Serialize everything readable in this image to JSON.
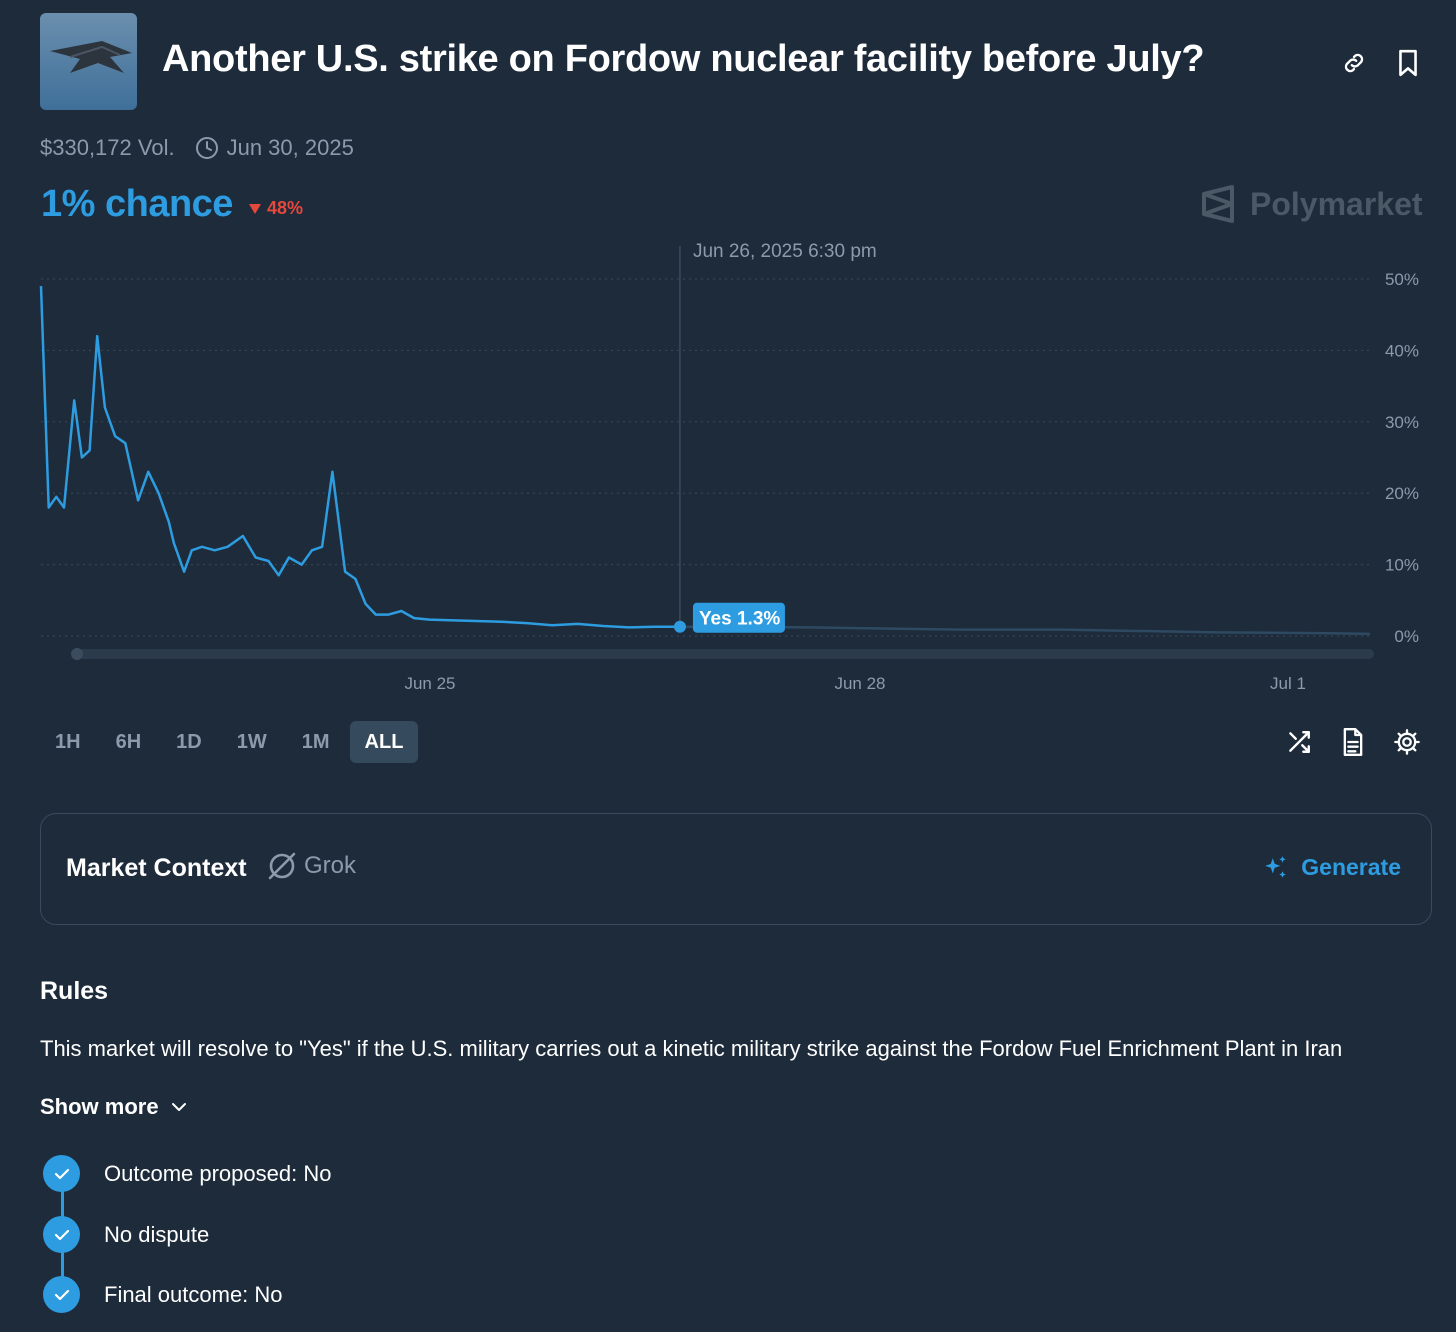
{
  "header": {
    "title": "Another U.S. strike on Fordow nuclear facility before July?",
    "thumbnail_icon": "stealth-bomber-image",
    "link_icon": "link-icon",
    "bookmark_icon": "bookmark-icon"
  },
  "meta": {
    "volume": "$330,172 Vol.",
    "end_date": "Jun 30, 2025"
  },
  "odds": {
    "chance": "1% chance",
    "change": "48%",
    "change_direction": "down"
  },
  "brand": {
    "name": "Polymarket"
  },
  "chart_data": {
    "type": "line",
    "series": [
      {
        "name": "Yes",
        "values_pct": [
          [
            0.0,
            49
          ],
          [
            0.3,
            18
          ],
          [
            0.6,
            19.5
          ],
          [
            0.9,
            18
          ],
          [
            1.3,
            33
          ],
          [
            1.6,
            25
          ],
          [
            1.9,
            26
          ],
          [
            2.2,
            42
          ],
          [
            2.5,
            32
          ],
          [
            2.9,
            28
          ],
          [
            3.3,
            27
          ],
          [
            3.8,
            19
          ],
          [
            4.2,
            23
          ],
          [
            4.6,
            20
          ],
          [
            5.0,
            16
          ],
          [
            5.2,
            13
          ],
          [
            5.6,
            9
          ],
          [
            5.9,
            12
          ],
          [
            6.3,
            12.5
          ],
          [
            6.8,
            12
          ],
          [
            7.3,
            12.5
          ],
          [
            7.9,
            14
          ],
          [
            8.4,
            11
          ],
          [
            8.9,
            10.5
          ],
          [
            9.3,
            8.5
          ],
          [
            9.7,
            11
          ],
          [
            10.2,
            10
          ],
          [
            10.6,
            12
          ],
          [
            11.0,
            12.5
          ],
          [
            11.4,
            23
          ],
          [
            11.9,
            9
          ],
          [
            12.3,
            8
          ],
          [
            12.7,
            4.5
          ],
          [
            13.1,
            3
          ],
          [
            13.6,
            3
          ],
          [
            14.1,
            3.5
          ],
          [
            14.6,
            2.5
          ],
          [
            15.2,
            2.3
          ],
          [
            16.0,
            2.2
          ],
          [
            17.0,
            2.1
          ],
          [
            18.0,
            2.0
          ],
          [
            19.0,
            1.8
          ],
          [
            20.0,
            1.5
          ],
          [
            21.0,
            1.7
          ],
          [
            22.0,
            1.4
          ],
          [
            23.0,
            1.2
          ],
          [
            24.0,
            1.3
          ],
          [
            25.0,
            1.3
          ]
        ],
        "faded_values_pct": [
          [
            25.0,
            1.3
          ],
          [
            30.0,
            1.2
          ],
          [
            36.0,
            0.9
          ],
          [
            40.0,
            0.9
          ],
          [
            46.0,
            0.5
          ],
          [
            50.0,
            0.4
          ],
          [
            52.0,
            0.3
          ]
        ]
      }
    ],
    "x_tick_labels": [
      "Jun 25",
      "Jun 28",
      "Jul 1"
    ],
    "y_tick_labels": [
      "50%",
      "40%",
      "30%",
      "20%",
      "10%",
      "0%"
    ],
    "ylim": [
      0,
      50
    ],
    "grid": "dotted-horizontal",
    "hover": {
      "timestamp": "Jun 26, 2025 6:30 pm",
      "label": "Yes 1.3%",
      "value_pct": 1.3
    },
    "line_color": "#2e9ce0"
  },
  "ranges": {
    "items": [
      "1H",
      "6H",
      "1D",
      "1W",
      "1M",
      "ALL"
    ],
    "active": "ALL"
  },
  "chart_tools": {
    "shuffle_icon": "shuffle-icon",
    "document_icon": "document-icon",
    "settings_icon": "gear-icon"
  },
  "context": {
    "title": "Market Context",
    "provider": "Grok",
    "action": "Generate"
  },
  "rules": {
    "title": "Rules",
    "text": "This market will resolve to \"Yes\" if the U.S. military carries out a kinetic military strike against the Fordow Fuel Enrichment Plant in Iran",
    "show_more": "Show more"
  },
  "timeline": [
    {
      "label": "Outcome proposed: No",
      "status": "done"
    },
    {
      "label": "No dispute",
      "status": "done"
    },
    {
      "label": "Final outcome: No",
      "status": "done"
    }
  ],
  "colors": {
    "background": "#1d2b3a",
    "accent": "#2e9ce0",
    "negative": "#e5483c",
    "muted": "#8c9aab"
  }
}
